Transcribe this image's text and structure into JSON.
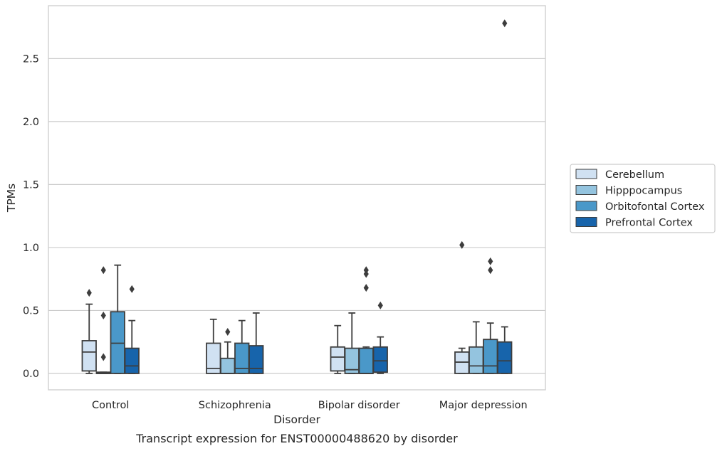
{
  "caption": "Transcript expression for ENST00000488620 by disorder",
  "chart_data": {
    "type": "box",
    "xlabel": "Disorder",
    "ylabel": "TPMs",
    "ylim": [
      -0.13,
      2.92
    ],
    "yticks": [
      0.0,
      0.5,
      1.0,
      1.5,
      2.0,
      2.5
    ],
    "ytick_labels": [
      "0.0",
      "0.5",
      "1.0",
      "1.5",
      "2.0",
      "2.5"
    ],
    "grid": "horizontal",
    "legend_position": "right",
    "categories": [
      "Control",
      "Schizophrenia",
      "Bipolar disorder",
      "Major depression"
    ],
    "series": [
      {
        "name": "Cerebellum",
        "color": "#d0e1f2",
        "boxes": [
          {
            "whislo": 0.0,
            "q1": 0.02,
            "med": 0.17,
            "q3": 0.26,
            "whishi": 0.55,
            "fliers": [
              0.64
            ]
          },
          {
            "whislo": 0.0,
            "q1": 0.0,
            "med": 0.04,
            "q3": 0.24,
            "whishi": 0.43,
            "fliers": []
          },
          {
            "whislo": 0.0,
            "q1": 0.02,
            "med": 0.13,
            "q3": 0.21,
            "whishi": 0.38,
            "fliers": []
          },
          {
            "whislo": 0.0,
            "q1": 0.0,
            "med": 0.09,
            "q3": 0.17,
            "whishi": 0.2,
            "fliers": [
              1.02
            ]
          }
        ]
      },
      {
        "name": "Hipppocampus",
        "color": "#94c4df",
        "boxes": [
          {
            "whislo": 0.0,
            "q1": 0.0,
            "med": 0.0,
            "q3": 0.01,
            "whishi": 0.01,
            "fliers": [
              0.13,
              0.46,
              0.82
            ]
          },
          {
            "whislo": 0.0,
            "q1": 0.0,
            "med": 0.0,
            "q3": 0.12,
            "whishi": 0.25,
            "fliers": [
              0.33
            ]
          },
          {
            "whislo": 0.0,
            "q1": 0.0,
            "med": 0.03,
            "q3": 0.2,
            "whishi": 0.48,
            "fliers": []
          },
          {
            "whislo": 0.0,
            "q1": 0.0,
            "med": 0.06,
            "q3": 0.21,
            "whishi": 0.41,
            "fliers": []
          }
        ]
      },
      {
        "name": "Orbitofontal Cortex",
        "color": "#4a98c9",
        "boxes": [
          {
            "whislo": 0.0,
            "q1": 0.0,
            "med": 0.24,
            "q3": 0.49,
            "whishi": 0.86,
            "fliers": []
          },
          {
            "whislo": 0.0,
            "q1": 0.0,
            "med": 0.04,
            "q3": 0.24,
            "whishi": 0.42,
            "fliers": []
          },
          {
            "whislo": 0.0,
            "q1": 0.0,
            "med": 0.0,
            "q3": 0.2,
            "whishi": 0.21,
            "fliers": [
              0.68,
              0.79,
              0.82
            ]
          },
          {
            "whislo": 0.0,
            "q1": 0.0,
            "med": 0.06,
            "q3": 0.27,
            "whishi": 0.4,
            "fliers": [
              0.82,
              0.89
            ]
          }
        ]
      },
      {
        "name": "Prefrontal Cortex",
        "color": "#1764ab",
        "boxes": [
          {
            "whislo": 0.0,
            "q1": 0.0,
            "med": 0.06,
            "q3": 0.2,
            "whishi": 0.42,
            "fliers": [
              0.67
            ]
          },
          {
            "whislo": 0.0,
            "q1": 0.0,
            "med": 0.04,
            "q3": 0.22,
            "whishi": 0.48,
            "fliers": []
          },
          {
            "whislo": 0.0,
            "q1": 0.01,
            "med": 0.1,
            "q3": 0.21,
            "whishi": 0.29,
            "fliers": [
              0.54
            ]
          },
          {
            "whislo": 0.0,
            "q1": 0.0,
            "med": 0.1,
            "q3": 0.25,
            "whishi": 0.37,
            "fliers": [
              2.78
            ]
          }
        ]
      }
    ]
  }
}
